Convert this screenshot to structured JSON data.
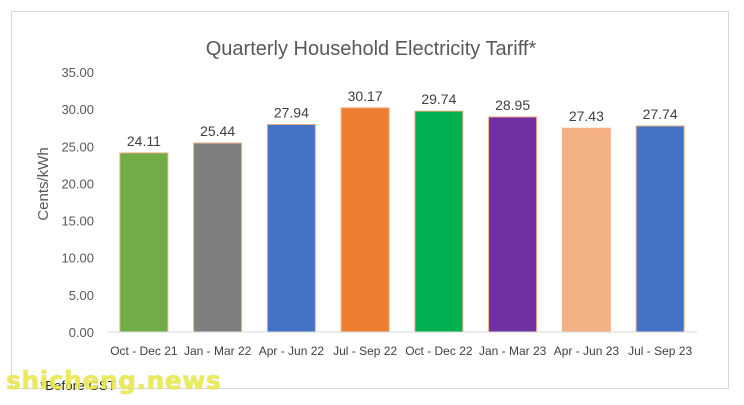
{
  "chart_data": {
    "type": "bar",
    "title": "Quarterly Household Electricity Tariff*",
    "ylabel": "Cents/kWh",
    "xlabel": "",
    "ylim": [
      0,
      35
    ],
    "ytick_step": 5,
    "ytick_labels": [
      "0.00",
      "5.00",
      "10.00",
      "15.00",
      "20.00",
      "25.00",
      "30.00",
      "35.00"
    ],
    "grid": false,
    "categories": [
      "Oct - Dec 21",
      "Jan - Mar 22",
      "Apr - Jun 22",
      "Jul - Sep 22",
      "Oct - Dec 22",
      "Jan - Mar 23",
      "Apr - Jun 23",
      "Jul - Sep 23"
    ],
    "values": [
      24.11,
      25.44,
      27.94,
      30.17,
      29.74,
      28.95,
      27.43,
      27.74
    ],
    "value_labels": [
      "24.11",
      "25.44",
      "27.94",
      "30.17",
      "29.74",
      "28.95",
      "27.43",
      "27.74"
    ],
    "colors": [
      "#70ad47",
      "#7f7f7f",
      "#4472c4",
      "#ed7d31",
      "#00b050",
      "#7030a0",
      "#f4b183",
      "#4472c4"
    ],
    "bar_border_color": "#f4b183"
  },
  "footnote": "*Before GST",
  "watermark": "shicheng.news"
}
